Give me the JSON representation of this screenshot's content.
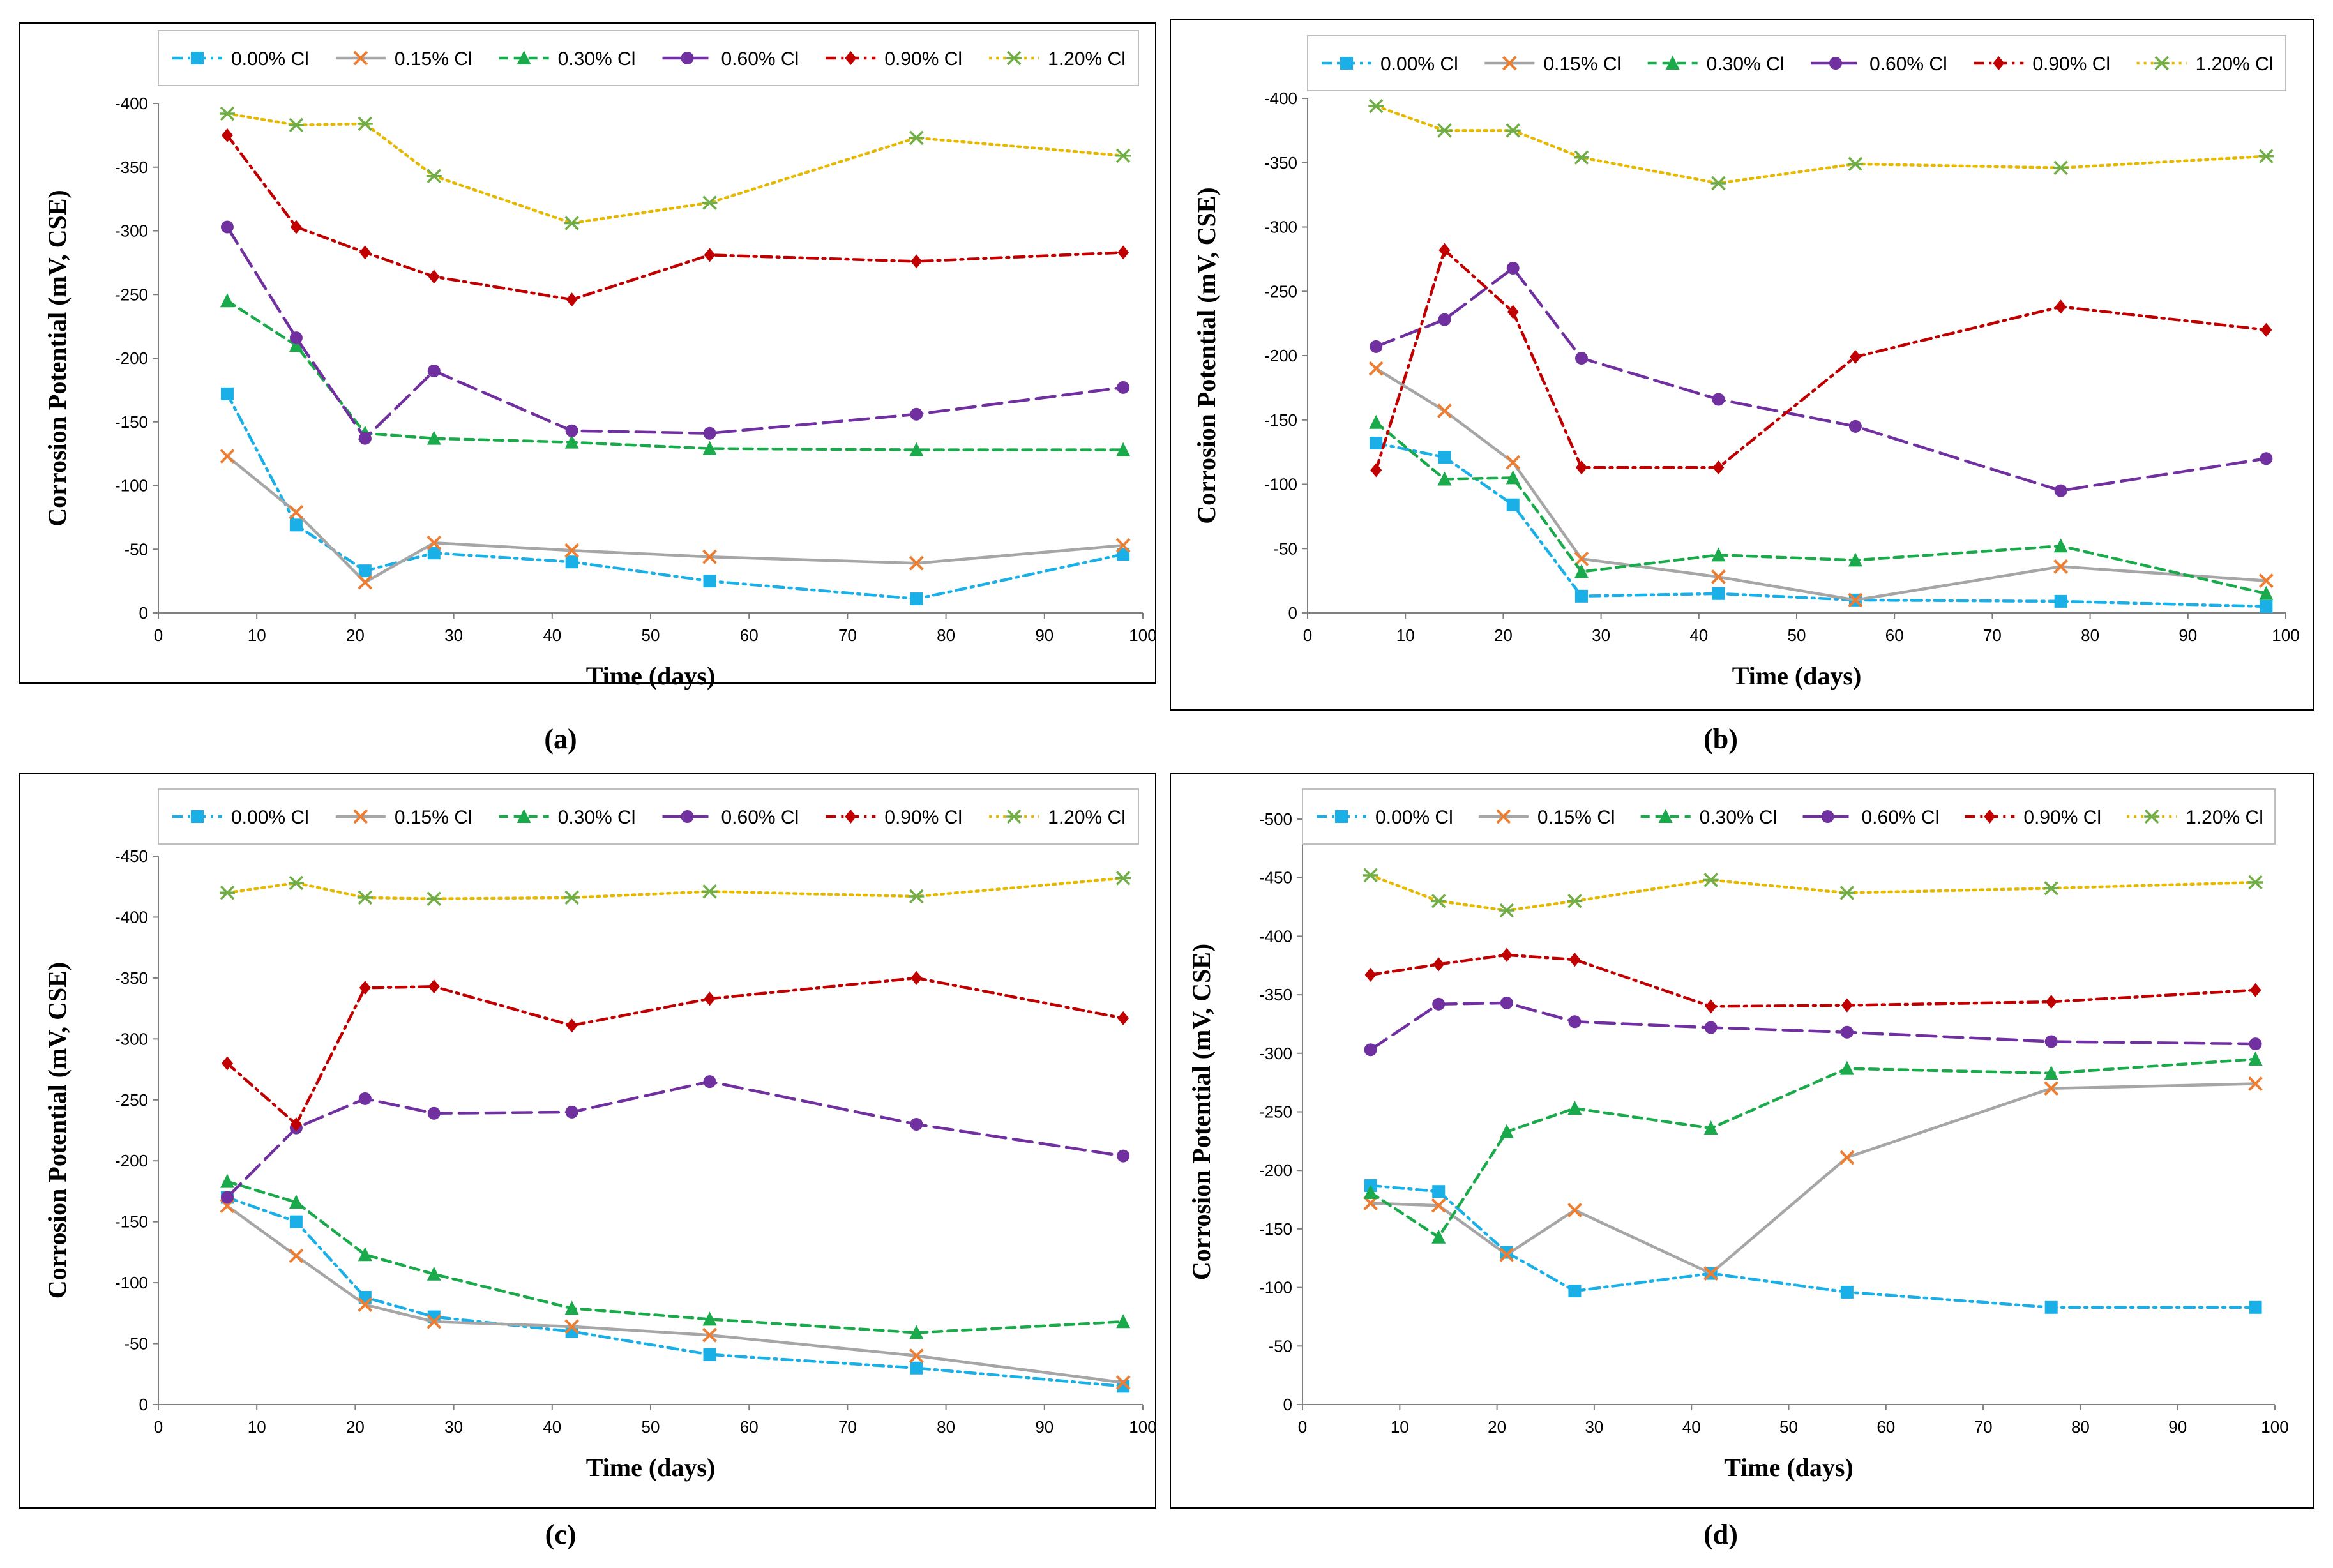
{
  "series_meta": [
    {
      "name": "0.00% Cl",
      "color": "#1AAFE6",
      "marker": "square",
      "dash": "dashdot"
    },
    {
      "name": "0.15% Cl",
      "color": "#A6A6A6",
      "marker": "x",
      "dash": "solid"
    },
    {
      "name": "0.30% Cl",
      "color": "#1BAA4B",
      "marker": "triangle",
      "dash": "dash"
    },
    {
      "name": "0.60% Cl",
      "color": "#7030A0",
      "marker": "circle",
      "dash": "longdash"
    },
    {
      "name": "0.90% Cl",
      "color": "#C00000",
      "marker": "diamond",
      "dash": "dashdot"
    },
    {
      "name": "1.20% Cl",
      "color": "#E6B800",
      "marker": "star",
      "dash": "dot"
    }
  ],
  "marker_colors": {
    "x": "#ED7D31",
    "star": "#70AD47"
  },
  "chart_data": [
    {
      "type": "line",
      "panel_label": "(a)",
      "xlabel": "Time (days)",
      "ylabel": "Corrosion Potential (mV, CSE)",
      "xlim": [
        0,
        100
      ],
      "ylim": [
        0,
        -400
      ],
      "x_ticks": [
        0,
        10,
        20,
        30,
        40,
        50,
        60,
        70,
        80,
        90,
        100
      ],
      "y_ticks": [
        0,
        -50,
        -100,
        -150,
        -200,
        -250,
        -300,
        -350,
        -400
      ],
      "x": [
        7,
        14,
        21,
        28,
        42,
        56,
        77,
        98
      ],
      "series": [
        {
          "name": "0.00% Cl",
          "values": [
            -172,
            -69,
            -33,
            -47,
            -40,
            -25,
            -11,
            -46
          ]
        },
        {
          "name": "0.15% Cl",
          "values": [
            -123,
            -79,
            -24,
            -55,
            -49,
            -44,
            -39,
            -53
          ]
        },
        {
          "name": "0.30% Cl",
          "values": [
            -245,
            -210,
            -141,
            -137,
            -134,
            -129,
            -128,
            -128
          ]
        },
        {
          "name": "0.60% Cl",
          "values": [
            -303,
            -216,
            -137,
            -190,
            -143,
            -141,
            -156,
            -177
          ]
        },
        {
          "name": "0.90% Cl",
          "values": [
            -375,
            -303,
            -283,
            -264,
            -246,
            -281,
            -276,
            -283
          ]
        },
        {
          "name": "1.20% Cl",
          "values": [
            -392,
            -383,
            -384,
            -343,
            -306,
            -322,
            -373,
            -359
          ]
        }
      ]
    },
    {
      "type": "line",
      "panel_label": "(b)",
      "xlabel": "Time (days)",
      "ylabel": "Corrosion Potential (mV, CSE)",
      "xlim": [
        0,
        100
      ],
      "ylim": [
        0,
        -400
      ],
      "x_ticks": [
        0,
        10,
        20,
        30,
        40,
        50,
        60,
        70,
        80,
        90,
        100
      ],
      "y_ticks": [
        0,
        -50,
        -100,
        -150,
        -200,
        -250,
        -300,
        -350,
        -400
      ],
      "x": [
        7,
        14,
        21,
        28,
        42,
        56,
        77,
        98
      ],
      "series": [
        {
          "name": "0.00% Cl",
          "values": [
            -132,
            -121,
            -84,
            -13,
            -15,
            -10,
            -9,
            -5
          ]
        },
        {
          "name": "0.15% Cl",
          "values": [
            -190,
            -157,
            -117,
            -42,
            -28,
            -10,
            -36,
            -25
          ]
        },
        {
          "name": "0.30% Cl",
          "values": [
            -148,
            -104,
            -105,
            -32,
            -45,
            -41,
            -52,
            -15
          ]
        },
        {
          "name": "0.60% Cl",
          "values": [
            -207,
            -228,
            -268,
            -198,
            -166,
            -145,
            -95,
            -120
          ]
        },
        {
          "name": "0.90% Cl",
          "values": [
            -111,
            -282,
            -234,
            -113,
            -113,
            -199,
            -238,
            -220
          ]
        },
        {
          "name": "1.20% Cl",
          "values": [
            -394,
            -375,
            -375,
            -354,
            -334,
            -349,
            -346,
            -355
          ]
        }
      ]
    },
    {
      "type": "line",
      "panel_label": "(c)",
      "xlabel": "Time (days)",
      "ylabel": "Corrosion Potential (mV, CSE)",
      "xlim": [
        0,
        100
      ],
      "ylim": [
        0,
        -450
      ],
      "x_ticks": [
        0,
        10,
        20,
        30,
        40,
        50,
        60,
        70,
        80,
        90,
        100
      ],
      "y_ticks": [
        0,
        -50,
        -100,
        -150,
        -200,
        -250,
        -300,
        -350,
        -400,
        -450
      ],
      "x": [
        7,
        14,
        21,
        28,
        42,
        56,
        77,
        98
      ],
      "series": [
        {
          "name": "0.00% Cl",
          "values": [
            -170,
            -150,
            -88,
            -72,
            -60,
            -41,
            -30,
            -15
          ]
        },
        {
          "name": "0.15% Cl",
          "values": [
            -163,
            -122,
            -82,
            -68,
            -64,
            -57,
            -40,
            -18
          ]
        },
        {
          "name": "0.30% Cl",
          "values": [
            -183,
            -166,
            -123,
            -107,
            -79,
            -70,
            -59,
            -68
          ]
        },
        {
          "name": "0.60% Cl",
          "values": [
            -170,
            -227,
            -251,
            -239,
            -240,
            -265,
            -230,
            -204
          ]
        },
        {
          "name": "0.90% Cl",
          "values": [
            -280,
            -230,
            -342,
            -343,
            -311,
            -333,
            -350,
            -317
          ]
        },
        {
          "name": "1.20% Cl",
          "values": [
            -420,
            -428,
            -416,
            -415,
            -416,
            -421,
            -417,
            -432
          ]
        }
      ]
    },
    {
      "type": "line",
      "panel_label": "(d)",
      "xlabel": "Time (days)",
      "ylabel": "Corrosion Potential (mV, CSE)",
      "xlim": [
        0,
        100
      ],
      "ylim": [
        0,
        -500
      ],
      "x_ticks": [
        0,
        10,
        20,
        30,
        40,
        50,
        60,
        70,
        80,
        90,
        100
      ],
      "y_ticks": [
        0,
        -50,
        -100,
        -150,
        -200,
        -250,
        -300,
        -350,
        -400,
        -450,
        -500
      ],
      "x": [
        7,
        14,
        21,
        28,
        42,
        56,
        77,
        98
      ],
      "series": [
        {
          "name": "0.00% Cl",
          "values": [
            -187,
            -182,
            -130,
            -97,
            -112,
            -96,
            -83,
            -83
          ]
        },
        {
          "name": "0.15% Cl",
          "values": [
            -172,
            -170,
            -128,
            -166,
            -112,
            -211,
            -270,
            -274
          ]
        },
        {
          "name": "0.30% Cl",
          "values": [
            -181,
            -143,
            -233,
            -253,
            -236,
            -287,
            -283,
            -295
          ]
        },
        {
          "name": "0.60% Cl",
          "values": [
            -303,
            -342,
            -343,
            -327,
            -322,
            -318,
            -310,
            -308
          ]
        },
        {
          "name": "0.90% Cl",
          "values": [
            -367,
            -376,
            -384,
            -380,
            -340,
            -341,
            -344,
            -354
          ]
        },
        {
          "name": "1.20% Cl",
          "values": [
            -452,
            -430,
            -422,
            -430,
            -448,
            -437,
            -441,
            -446
          ]
        }
      ]
    }
  ]
}
